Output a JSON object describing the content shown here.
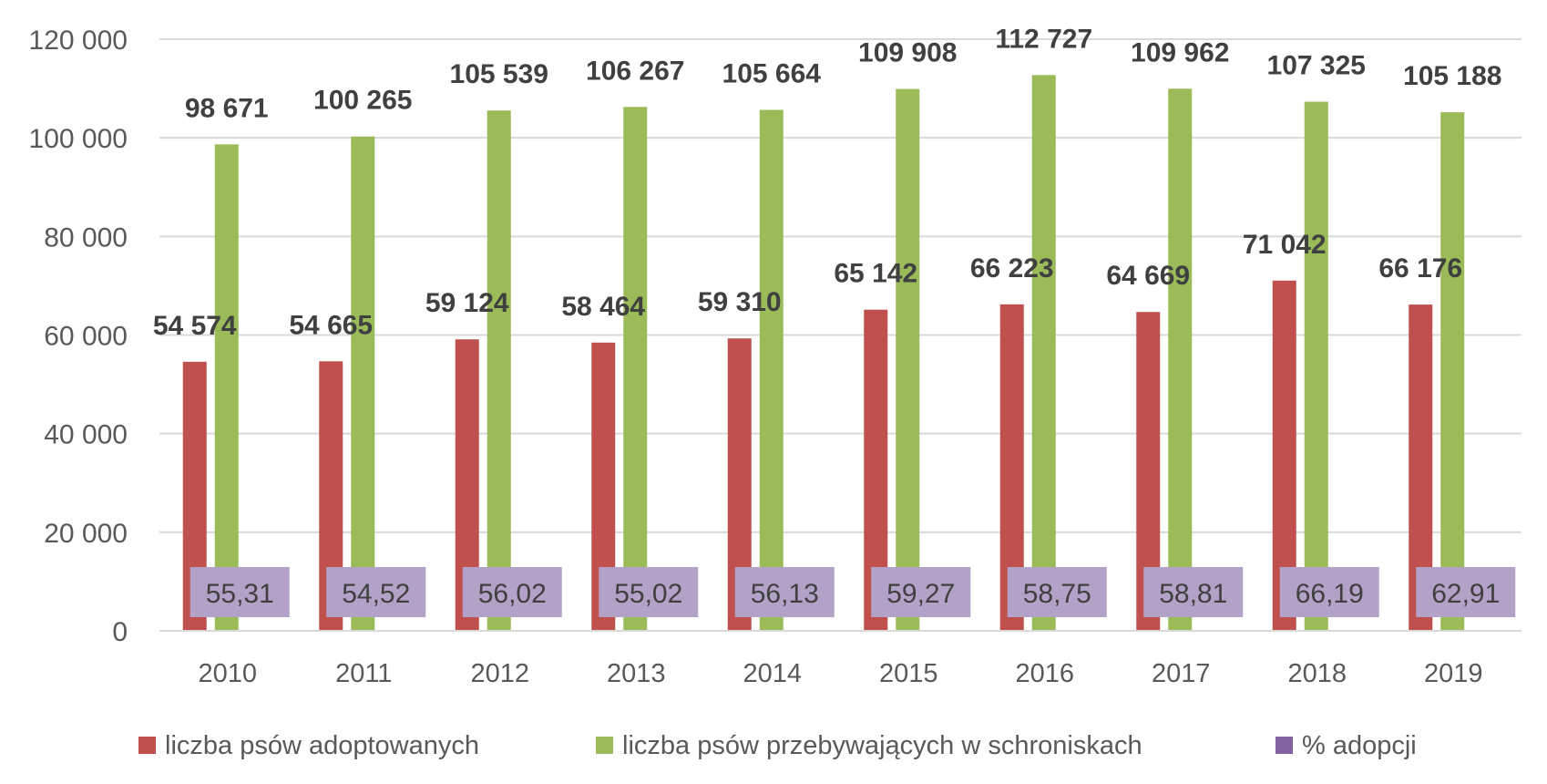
{
  "chart_data": {
    "type": "bar",
    "categories": [
      "2010",
      "2011",
      "2012",
      "2013",
      "2014",
      "2015",
      "2016",
      "2017",
      "2018",
      "2019"
    ],
    "series": [
      {
        "name": "liczba psów adoptowanych",
        "color": "#c0504d",
        "values": [
          54574,
          54665,
          59124,
          58464,
          59310,
          65142,
          66223,
          64669,
          71042,
          66176
        ],
        "labels": [
          "54 574",
          "54 665",
          "59 124",
          "58 464",
          "59 310",
          "65 142",
          "66 223",
          "64 669",
          "71 042",
          "66 176"
        ]
      },
      {
        "name": "liczba psów przebywających w schroniskach",
        "color": "#9bbb59",
        "values": [
          98671,
          100265,
          105539,
          106267,
          105664,
          109908,
          112727,
          109962,
          107325,
          105188
        ],
        "labels": [
          "98 671",
          "100 265",
          "105 539",
          "106 267",
          "105 664",
          "109 908",
          "112 727",
          "109 962",
          "107 325",
          "105 188"
        ]
      },
      {
        "name": "% adopcji",
        "color": "#b3a2c7",
        "legend_color": "#8064a2",
        "values": [
          55.31,
          54.52,
          56.02,
          55.02,
          56.13,
          59.27,
          58.75,
          58.81,
          66.19,
          62.91
        ],
        "labels": [
          "55,31",
          "54,52",
          "56,02",
          "55,02",
          "56,13",
          "59,27",
          "58,75",
          "58,81",
          "66,19",
          "62,91"
        ]
      }
    ],
    "ylim": [
      0,
      120000
    ],
    "yticks": [
      "0",
      "20 000",
      "40 000",
      "60 000",
      "80 000",
      "100 000",
      "120 000"
    ],
    "grid": true,
    "legend_position": "bottom",
    "title": "",
    "xlabel": "",
    "ylabel": ""
  }
}
